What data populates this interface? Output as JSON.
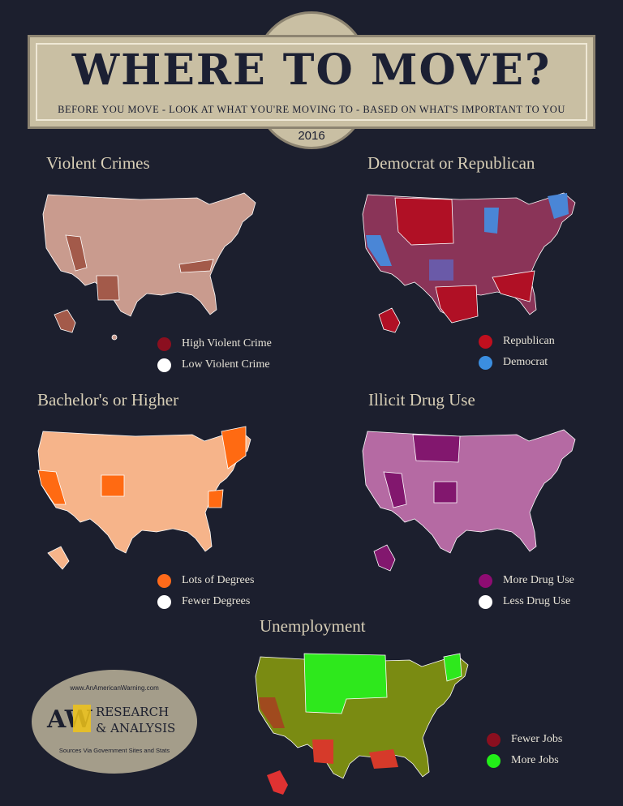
{
  "header": {
    "title": "WHERE TO MOVE?",
    "subtitle": "BEFORE YOU MOVE - LOOK AT WHAT YOU'RE MOVING TO - BASED ON WHAT'S IMPORTANT TO YOU",
    "year": "2016"
  },
  "maps": [
    {
      "title": "Violent Crimes",
      "base_color": "#c99b8e",
      "accent_color": "#a35a4a",
      "legend": [
        {
          "label": "High Violent Crime",
          "color": "#8b0f1f"
        },
        {
          "label": "Low Violent Crime",
          "color": "#ffffff"
        }
      ]
    },
    {
      "title": "Democrat or Republican",
      "base_color": "#8a3458",
      "accent_color": "#b01025",
      "legend": [
        {
          "label": "Republican",
          "color": "#c00f1e"
        },
        {
          "label": "Democrat",
          "color": "#3b8ee0"
        }
      ]
    },
    {
      "title": "Bachelor's or Higher",
      "base_color": "#f6b48a",
      "accent_color": "#ff6a12",
      "legend": [
        {
          "label": "Lots of Degrees",
          "color": "#ff6a1a"
        },
        {
          "label": "Fewer Degrees",
          "color": "#ffffff"
        }
      ]
    },
    {
      "title": "Illicit Drug Use",
      "base_color": "#b56aa3",
      "accent_color": "#82176e",
      "legend": [
        {
          "label": "More Drug Use",
          "color": "#8e0c72"
        },
        {
          "label": "Less Drug Use",
          "color": "#ffffff"
        }
      ]
    },
    {
      "title": "Unemployment",
      "base_color": "#7a8b12",
      "accent_color": "#2ee81c",
      "legend": [
        {
          "label": "Fewer Jobs",
          "color": "#8b0f1f"
        },
        {
          "label": "More Jobs",
          "color": "#22ee18"
        }
      ]
    }
  ],
  "logo": {
    "url_text": "www.AnAmericanWarning.com",
    "monogram": "AW",
    "line1": "RESEARCH",
    "line2": "& ANALYSIS",
    "sources": "Sources Via Government Sites and Stats"
  }
}
